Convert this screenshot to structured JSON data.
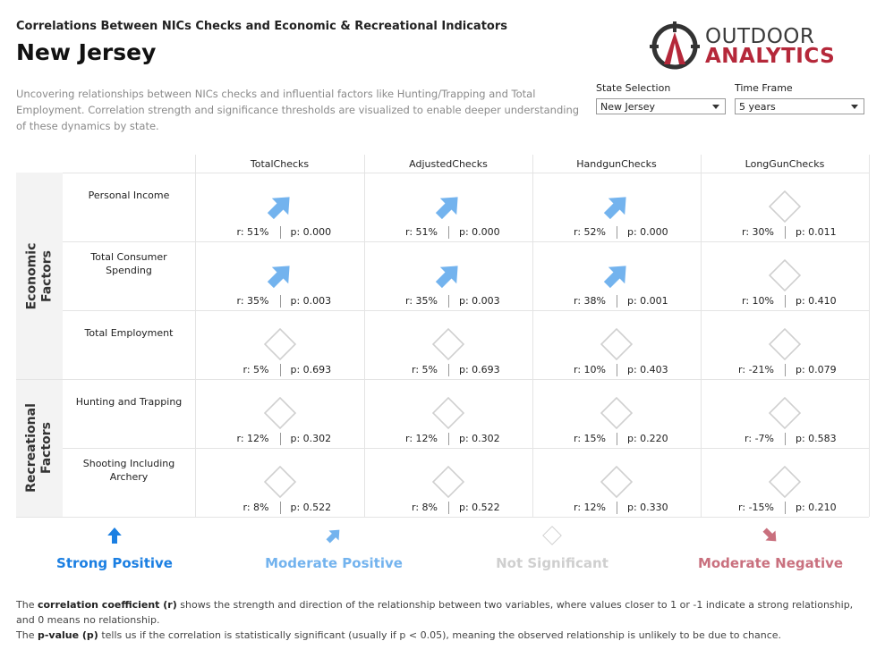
{
  "header": {
    "subtitle": "Correlations Between NICs Checks and Economic & Recreational Indicators",
    "state": "New Jersey",
    "description": "Uncovering relationships between NICs checks and influential factors like Hunting/Trapping and Total Employment. Correlation strength and significance thresholds are visualized to enable deeper understanding of these dynamics by state.",
    "logo": {
      "line1": "OUTDOOR",
      "line2": "ANALYTICS"
    }
  },
  "filters": [
    {
      "label": "State Selection",
      "value": "New Jersey"
    },
    {
      "label": "Time Frame",
      "value": "5 years"
    }
  ],
  "table": {
    "columns": [
      "TotalChecks",
      "AdjustedChecks",
      "HandgunChecks",
      "LongGunChecks"
    ],
    "groups": [
      {
        "label": "Economic Factors",
        "rows": [
          {
            "label": "Personal Income",
            "cells": [
              {
                "r": "r: 51%",
                "p": "p: 0.000",
                "level": 1
              },
              {
                "r": "r: 51%",
                "p": "p: 0.000",
                "level": 1
              },
              {
                "r": "r: 52%",
                "p": "p: 0.000",
                "level": 1
              },
              {
                "r": "r: 30%",
                "p": "p: 0.011",
                "level": 2
              }
            ]
          },
          {
            "label": "Total Consumer Spending",
            "cells": [
              {
                "r": "r: 35%",
                "p": "p: 0.003",
                "level": 1
              },
              {
                "r": "r: 35%",
                "p": "p: 0.003",
                "level": 1
              },
              {
                "r": "r: 38%",
                "p": "p: 0.001",
                "level": 1
              },
              {
                "r": "r: 10%",
                "p": "p: 0.410",
                "level": 2
              }
            ]
          },
          {
            "label": "Total Employment",
            "cells": [
              {
                "r": "r: 5%",
                "p": "p: 0.693",
                "level": 2
              },
              {
                "r": "r: 5%",
                "p": "p: 0.693",
                "level": 2
              },
              {
                "r": "r: 10%",
                "p": "p: 0.403",
                "level": 2
              },
              {
                "r": "r: -21%",
                "p": "p: 0.079",
                "level": 2
              }
            ]
          }
        ]
      },
      {
        "label": "Recreational Factors",
        "rows": [
          {
            "label": "Hunting and Trapping",
            "cells": [
              {
                "r": "r: 12%",
                "p": "p: 0.302",
                "level": 2
              },
              {
                "r": "r: 12%",
                "p": "p: 0.302",
                "level": 2
              },
              {
                "r": "r: 15%",
                "p": "p: 0.220",
                "level": 2
              },
              {
                "r": "r: -7%",
                "p": "p: 0.583",
                "level": 2
              }
            ]
          },
          {
            "label": "Shooting Including Archery",
            "cells": [
              {
                "r": "r: 8%",
                "p": "p: 0.522",
                "level": 2
              },
              {
                "r": "r: 8%",
                "p": "p: 0.522",
                "level": 2
              },
              {
                "r": "r: 12%",
                "p": "p: 0.330",
                "level": 2
              },
              {
                "r": "r: -15%",
                "p": "p: 0.210",
                "level": 2
              }
            ]
          }
        ]
      }
    ]
  },
  "legend": [
    {
      "label": "Strong Positive",
      "color": "#1b7fe2",
      "icon": "up"
    },
    {
      "label": "Moderate Positive",
      "color": "#73b3ee",
      "icon": "up-right"
    },
    {
      "label": "Not Significant",
      "color": "#cfcfcf",
      "icon": "diamond"
    },
    {
      "label": "Moderate Negative",
      "color": "#c9707e",
      "icon": "down-right"
    }
  ],
  "notes": [
    {
      "pre": "The ",
      "bold": "correlation coefficient (r)",
      "post": " shows the strength and direction of the relationship between two variables, where values closer to 1 or -1 indicate a strong relationship, and 0 means no relationship."
    },
    {
      "pre": "The ",
      "bold": "p-value (p)",
      "post": " tells us if the correlation is statistically significant (usually if p < 0.05), meaning the observed relationship is unlikely to be due to chance."
    }
  ]
}
